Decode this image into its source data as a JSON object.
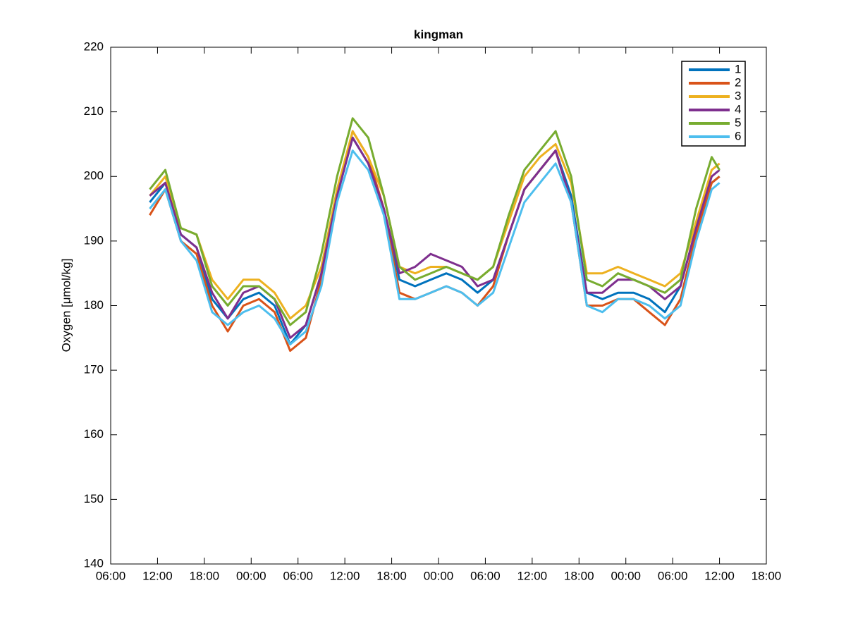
{
  "chart_data": {
    "type": "line",
    "title": "kingman",
    "y_label": "Oxygen [μmol/kg]",
    "x": [
      11,
      13,
      15,
      17,
      19,
      21,
      23,
      25,
      27,
      29,
      31,
      33,
      35,
      37,
      39,
      41,
      43,
      45,
      47,
      49,
      51,
      53,
      55,
      57,
      59,
      61,
      63,
      65,
      67,
      69,
      71,
      73,
      75,
      77,
      79,
      81,
      83,
      84
    ],
    "series": [
      {
        "name": "1",
        "color": "#0072BD",
        "values": [
          196,
          199,
          191,
          189,
          181,
          178,
          181,
          182,
          180,
          174,
          177,
          185,
          197,
          206,
          202,
          195,
          184,
          183,
          184,
          185,
          184,
          182,
          184,
          191,
          198,
          201,
          204,
          197,
          182,
          181,
          182,
          182,
          181,
          179,
          183,
          192,
          199,
          200
        ]
      },
      {
        "name": "2",
        "color": "#D95319",
        "values": [
          194,
          198,
          190,
          188,
          180,
          176,
          180,
          181,
          179,
          173,
          175,
          184,
          197,
          207,
          203,
          195,
          182,
          181,
          182,
          183,
          182,
          180,
          183,
          191,
          198,
          201,
          204,
          196,
          180,
          180,
          181,
          181,
          179,
          177,
          181,
          191,
          199,
          200
        ]
      },
      {
        "name": "3",
        "color": "#EDB120",
        "values": [
          197,
          200,
          192,
          191,
          184,
          181,
          184,
          184,
          182,
          178,
          180,
          186,
          198,
          207,
          203,
          197,
          186,
          185,
          186,
          186,
          185,
          184,
          186,
          193,
          200,
          203,
          205,
          199,
          185,
          185,
          186,
          185,
          184,
          183,
          185,
          193,
          201,
          202
        ]
      },
      {
        "name": "4",
        "color": "#7E2F8E",
        "values": [
          197,
          199,
          191,
          189,
          182,
          178,
          182,
          183,
          181,
          175,
          177,
          185,
          197,
          206,
          202,
          195,
          185,
          186,
          188,
          187,
          186,
          183,
          184,
          191,
          198,
          201,
          204,
          196,
          182,
          182,
          184,
          184,
          183,
          181,
          183,
          192,
          200,
          201
        ]
      },
      {
        "name": "5",
        "color": "#77AC30",
        "values": [
          198,
          201,
          192,
          191,
          183,
          180,
          183,
          183,
          181,
          177,
          179,
          188,
          200,
          209,
          206,
          197,
          186,
          184,
          185,
          186,
          185,
          184,
          186,
          194,
          201,
          204,
          207,
          200,
          184,
          183,
          185,
          184,
          183,
          182,
          184,
          195,
          203,
          201
        ]
      },
      {
        "name": "6",
        "color": "#4DBEEE",
        "values": [
          195,
          198,
          190,
          187,
          179,
          177,
          179,
          180,
          178,
          174,
          176,
          183,
          196,
          204,
          201,
          194,
          181,
          181,
          182,
          183,
          182,
          180,
          182,
          189,
          196,
          199,
          202,
          196,
          180,
          179,
          181,
          181,
          180,
          178,
          180,
          190,
          198,
          199
        ]
      }
    ],
    "xlim": [
      6,
      90
    ],
    "xticks": [
      {
        "value": 6,
        "label": "06:00"
      },
      {
        "value": 12,
        "label": "12:00"
      },
      {
        "value": 18,
        "label": "18:00"
      },
      {
        "value": 24,
        "label": "00:00"
      },
      {
        "value": 30,
        "label": "06:00"
      },
      {
        "value": 36,
        "label": "12:00"
      },
      {
        "value": 42,
        "label": "18:00"
      },
      {
        "value": 48,
        "label": "00:00"
      },
      {
        "value": 54,
        "label": "06:00"
      },
      {
        "value": 60,
        "label": "12:00"
      },
      {
        "value": 66,
        "label": "18:00"
      },
      {
        "value": 72,
        "label": "00:00"
      },
      {
        "value": 78,
        "label": "06:00"
      },
      {
        "value": 84,
        "label": "12:00"
      },
      {
        "value": 90,
        "label": "18:00"
      }
    ],
    "ylim": [
      140,
      220
    ],
    "yticks": [
      140,
      150,
      160,
      170,
      180,
      190,
      200,
      210,
      220
    ],
    "legend": "northeast"
  }
}
